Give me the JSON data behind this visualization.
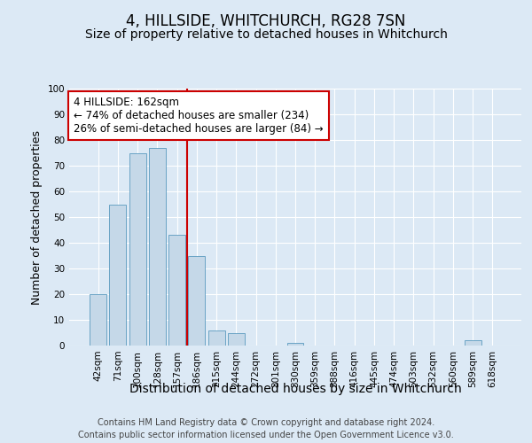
{
  "title": "4, HILLSIDE, WHITCHURCH, RG28 7SN",
  "subtitle": "Size of property relative to detached houses in Whitchurch",
  "xlabel": "Distribution of detached houses by size in Whitchurch",
  "ylabel": "Number of detached properties",
  "footnote1": "Contains HM Land Registry data © Crown copyright and database right 2024.",
  "footnote2": "Contains public sector information licensed under the Open Government Licence v3.0.",
  "annotation_line1": "4 HILLSIDE: 162sqm",
  "annotation_line2": "← 74% of detached houses are smaller (234)",
  "annotation_line3": "26% of semi-detached houses are larger (84) →",
  "bar_labels": [
    "42sqm",
    "71sqm",
    "100sqm",
    "128sqm",
    "157sqm",
    "186sqm",
    "215sqm",
    "244sqm",
    "272sqm",
    "301sqm",
    "330sqm",
    "359sqm",
    "388sqm",
    "416sqm",
    "445sqm",
    "474sqm",
    "503sqm",
    "532sqm",
    "560sqm",
    "589sqm",
    "618sqm"
  ],
  "bar_values": [
    20,
    55,
    75,
    77,
    43,
    35,
    6,
    5,
    0,
    0,
    1,
    0,
    0,
    0,
    0,
    0,
    0,
    0,
    0,
    2,
    0
  ],
  "bar_color": "#c5d8e8",
  "bar_edge_color": "#5a9abf",
  "vline_color": "#cc0000",
  "vline_x": 4.5,
  "ylim": [
    0,
    100
  ],
  "yticks": [
    0,
    10,
    20,
    30,
    40,
    50,
    60,
    70,
    80,
    90,
    100
  ],
  "background_color": "#dce9f5",
  "plot_bg_color": "#dce9f5",
  "annotation_box_facecolor": "#ffffff",
  "annotation_border_color": "#cc0000",
  "title_fontsize": 12,
  "subtitle_fontsize": 10,
  "xlabel_fontsize": 10,
  "ylabel_fontsize": 9,
  "tick_fontsize": 7.5,
  "annotation_fontsize": 8.5,
  "footnote_fontsize": 7
}
